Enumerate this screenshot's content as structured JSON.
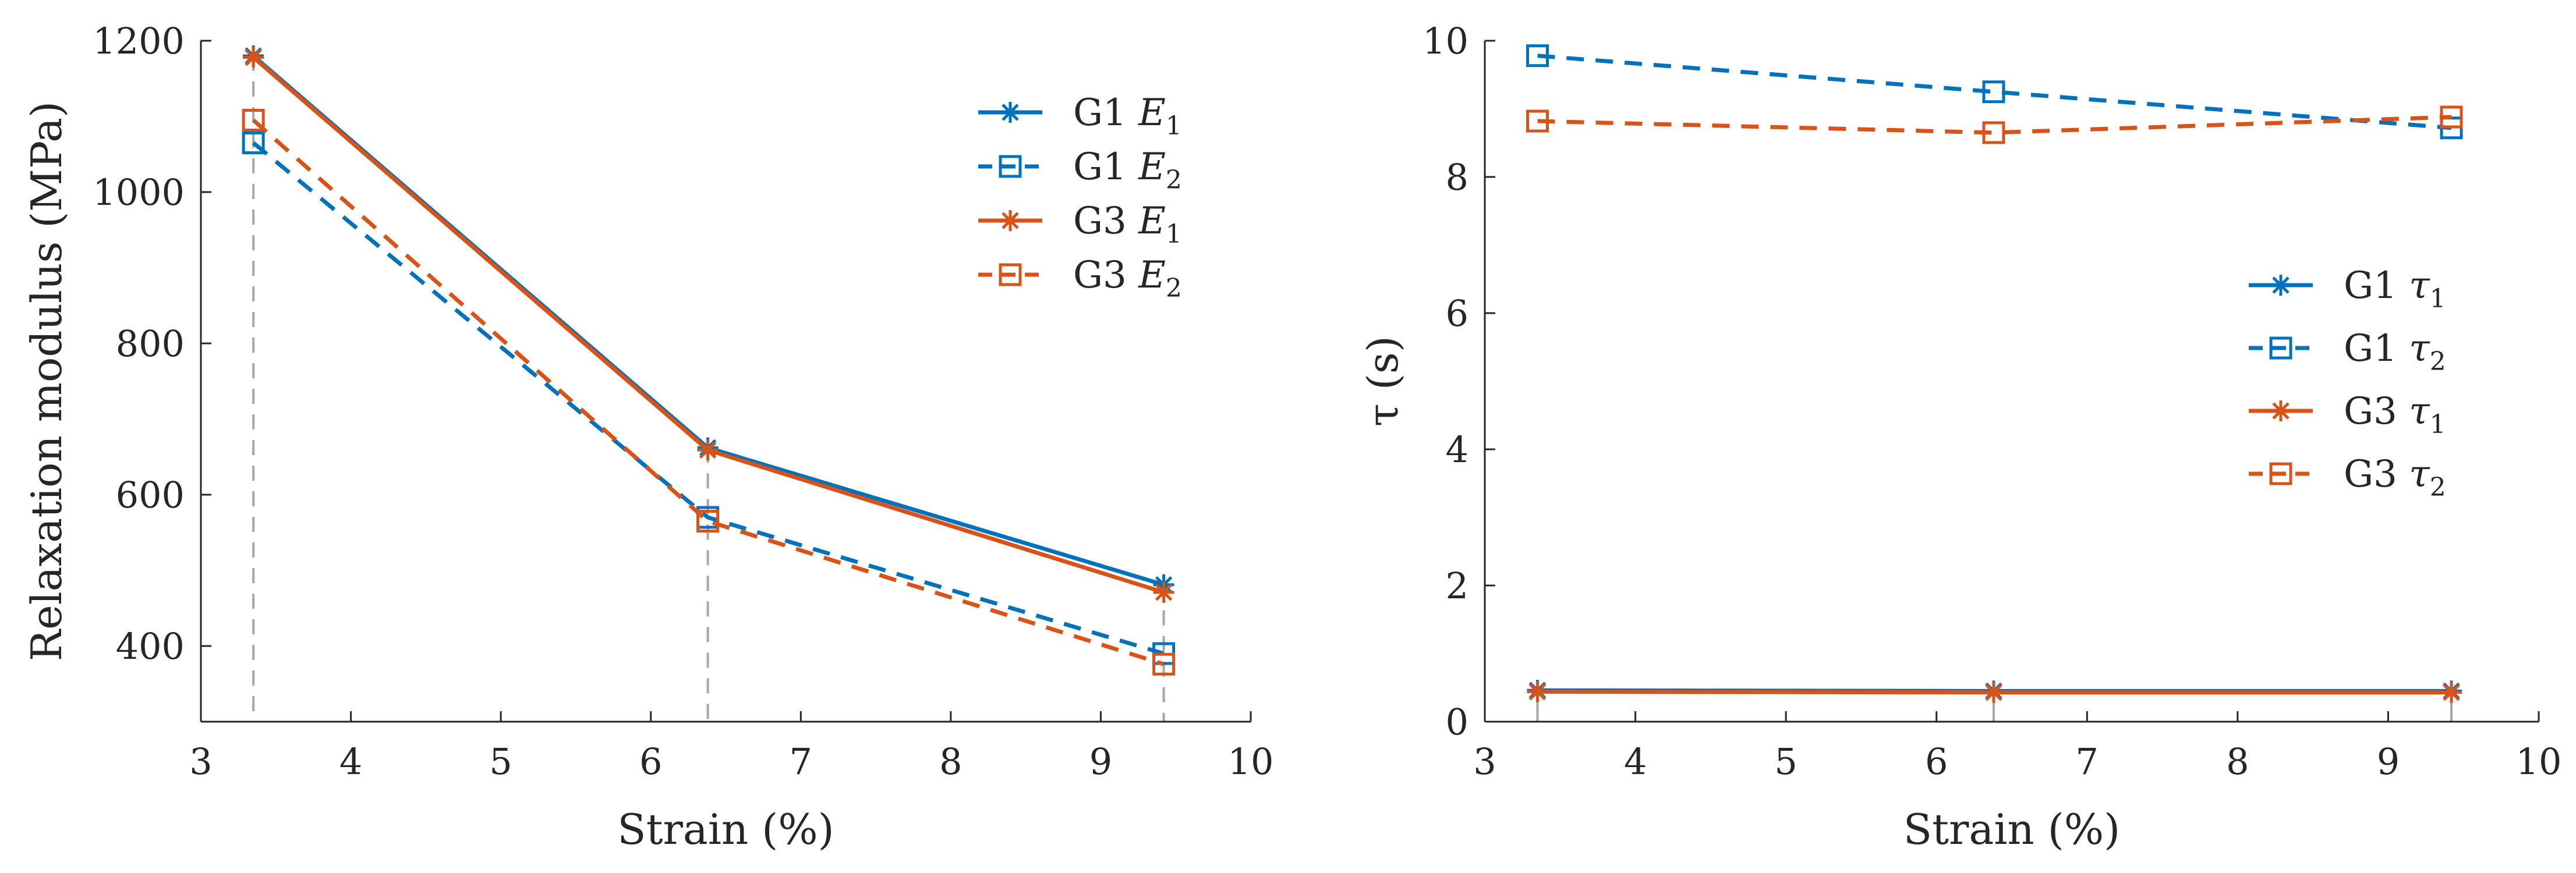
{
  "colors": {
    "G1": "#0072BD",
    "G3": "#D95319",
    "axis": "#262626",
    "guide": "#a6a6a6"
  },
  "chart_data": [
    {
      "type": "line",
      "xlabel": "Strain (%)",
      "ylabel": "Relaxation modulus (MPa)",
      "xlim": [
        3,
        10
      ],
      "ylim": [
        300,
        1200
      ],
      "xticks": [
        "3",
        "4",
        "5",
        "6",
        "7",
        "8",
        "9",
        "10"
      ],
      "yticks": [
        "400",
        "600",
        "800",
        "1000",
        "1200"
      ],
      "grid": false,
      "legend_placement": "top-right",
      "x": [
        3.35,
        6.38,
        9.42
      ],
      "series": [
        {
          "name": "G1 E1",
          "label_main": "G1 ",
          "symbol": "E",
          "sub": "1",
          "color": "#0072BD",
          "line": "solid",
          "marker": "asterisk",
          "values": [
            1180,
            662,
            481
          ]
        },
        {
          "name": "G1 E2",
          "label_main": "G1 ",
          "symbol": "E",
          "sub": "2",
          "color": "#0072BD",
          "line": "dashed",
          "marker": "square",
          "values": [
            1065,
            570,
            390
          ]
        },
        {
          "name": "G3 E1",
          "label_main": "G3 ",
          "symbol": "E",
          "sub": "1",
          "color": "#D95319",
          "line": "solid",
          "marker": "asterisk",
          "values": [
            1178,
            659,
            471
          ]
        },
        {
          "name": "G3 E2",
          "label_main": "G3 ",
          "symbol": "E",
          "sub": "2",
          "color": "#D95319",
          "line": "dashed",
          "marker": "square",
          "values": [
            1095,
            565,
            376
          ]
        }
      ]
    },
    {
      "type": "line",
      "xlabel": "Strain (%)",
      "ylabel": "τ (s)",
      "xlim": [
        3,
        10
      ],
      "ylim": [
        0,
        10
      ],
      "xticks": [
        "3",
        "4",
        "5",
        "6",
        "7",
        "8",
        "9",
        "10"
      ],
      "yticks": [
        "0",
        "2",
        "4",
        "6",
        "8",
        "10"
      ],
      "grid": false,
      "legend_placement": "middle-right",
      "x": [
        3.35,
        6.38,
        9.42
      ],
      "series": [
        {
          "name": "G1 τ1",
          "label_main": "G1 ",
          "symbol": "τ",
          "sub": "1",
          "color": "#0072BD",
          "line": "solid",
          "marker": "asterisk",
          "values": [
            0.46,
            0.45,
            0.45
          ]
        },
        {
          "name": "G1 τ2",
          "label_main": "G1 ",
          "symbol": "τ",
          "sub": "2",
          "color": "#0072BD",
          "line": "dashed",
          "marker": "square",
          "values": [
            9.78,
            9.25,
            8.72
          ]
        },
        {
          "name": "G3 τ1",
          "label_main": "G3 ",
          "symbol": "τ",
          "sub": "1",
          "color": "#D95319",
          "line": "solid",
          "marker": "asterisk",
          "values": [
            0.44,
            0.43,
            0.43
          ]
        },
        {
          "name": "G3 τ2",
          "label_main": "G3 ",
          "symbol": "τ",
          "sub": "2",
          "color": "#D95319",
          "line": "dashed",
          "marker": "square",
          "values": [
            8.82,
            8.65,
            8.88
          ]
        }
      ]
    }
  ]
}
